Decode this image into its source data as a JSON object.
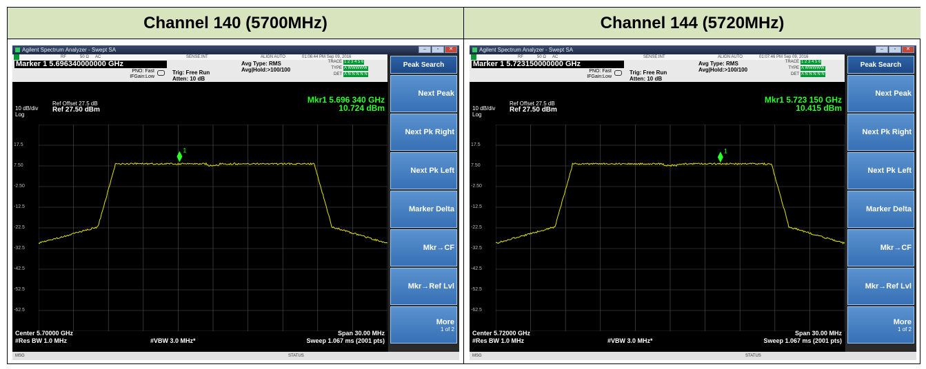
{
  "panels": [
    {
      "header": "Channel 140 (5700MHz)",
      "window_title": "Agilent Spectrum Analyzer - Swept SA",
      "rf_bar": {
        "rf": "RF",
        "ohm": "50 Ω",
        "ac": "AC",
        "sense": "SENSE:INT",
        "align": "ALIGN AUTO",
        "timestamp": "01:06:44 PM Sep 09, 2016"
      },
      "marker_line": "Marker 1 5.696340000000 GHz",
      "pno": "PNO: Fast",
      "ifgain": "IFGain:Low",
      "trig": "Trig: Free Run",
      "atten": "Atten: 10 dB",
      "avg_type": "Avg Type: RMS",
      "avg_hold": "Avg|Hold:>100/100",
      "trace_labels": {
        "trace": "TRACE",
        "type": "TYPE",
        "det": "DET"
      },
      "trace_values": {
        "trace": "1 2 3 4 5 6",
        "type": "A WWWWW",
        "det": "A N N N N N"
      },
      "ref_offset": "Ref Offset 27.5 dB",
      "ref_level": "Ref 27.50 dBm",
      "scale": "10 dB/div",
      "scale_type": "Log",
      "mkr_freq": "Mkr1 5.696 340 GHz",
      "mkr_level": "10.724 dBm",
      "marker_label": "1",
      "y_ticks": [
        "17.5",
        "7.50",
        "-2.50",
        "-12.5",
        "-22.5",
        "-32.5",
        "-42.5",
        "-52.5",
        "-62.5"
      ],
      "center": "Center 5.70000 GHz",
      "span": "Span 30.00 MHz",
      "rbw": "#Res BW 1.0 MHz",
      "vbw": "#VBW 3.0 MHz*",
      "sweep": "Sweep  1.067 ms (2001 pts)",
      "msg": "MSG",
      "status": "STATUS",
      "softkeys": {
        "title": "Peak Search",
        "next_peak": "Next Peak",
        "next_pk_right": "Next Pk Right",
        "next_pk_left": "Next Pk Left",
        "marker_delta": "Marker Delta",
        "mkr_cf": "Mkr→CF",
        "mkr_ref": "Mkr→Ref Lvl",
        "more": "More",
        "more_sub": "1 of 2"
      },
      "trace": {
        "marker_x_frac": 0.404,
        "marker_y_dbm": 10.724
      }
    },
    {
      "header": "Channel 144 (5720MHz)",
      "window_title": "Agilent Spectrum Analyzer - Swept SA",
      "rf_bar": {
        "rf": "RF",
        "ohm": "50 Ω",
        "ac": "AC",
        "sense": "SENSE:INT",
        "align": "ALIGN AUTO",
        "timestamp": "01:07:46 PM Sep 09, 2016"
      },
      "marker_line": "Marker 1 5.723150000000 GHz",
      "pno": "PNO: Fast",
      "ifgain": "IFGain:Low",
      "trig": "Trig: Free Run",
      "atten": "Atten: 10 dB",
      "avg_type": "Avg Type: RMS",
      "avg_hold": "Avg|Hold:>100/100",
      "trace_labels": {
        "trace": "TRACE",
        "type": "TYPE",
        "det": "DET"
      },
      "trace_values": {
        "trace": "1 2 3 4 5 6",
        "type": "A WWWWW",
        "det": "A N N N N N"
      },
      "ref_offset": "Ref Offset 27.5 dB",
      "ref_level": "Ref 27.50 dBm",
      "scale": "10 dB/div",
      "scale_type": "Log",
      "mkr_freq": "Mkr1 5.723 150 GHz",
      "mkr_level": "10.415 dBm",
      "marker_label": "1",
      "y_ticks": [
        "17.5",
        "7.50",
        "-2.50",
        "-12.5",
        "-22.5",
        "-32.5",
        "-42.5",
        "-52.5",
        "-62.5"
      ],
      "center": "Center 5.72000 GHz",
      "span": "Span 30.00 MHz",
      "rbw": "#Res BW 1.0 MHz",
      "vbw": "#VBW 3.0 MHz*",
      "sweep": "Sweep  1.067 ms (2001 pts)",
      "msg": "MSG",
      "status": "STATUS",
      "softkeys": {
        "title": "Peak Search",
        "next_peak": "Next Peak",
        "next_pk_right": "Next Pk Right",
        "next_pk_left": "Next Pk Left",
        "marker_delta": "Marker Delta",
        "mkr_cf": "Mkr→CF",
        "mkr_ref": "Mkr→Ref Lvl",
        "more": "More",
        "more_sub": "1 of 2"
      },
      "trace": {
        "marker_x_frac": 0.644,
        "marker_y_dbm": 10.415
      }
    }
  ],
  "colors": {
    "header_bg": "#d7e4bd",
    "trace": "#e6e600",
    "marker": "#2cff2c",
    "softkey": "#4a85c6"
  }
}
